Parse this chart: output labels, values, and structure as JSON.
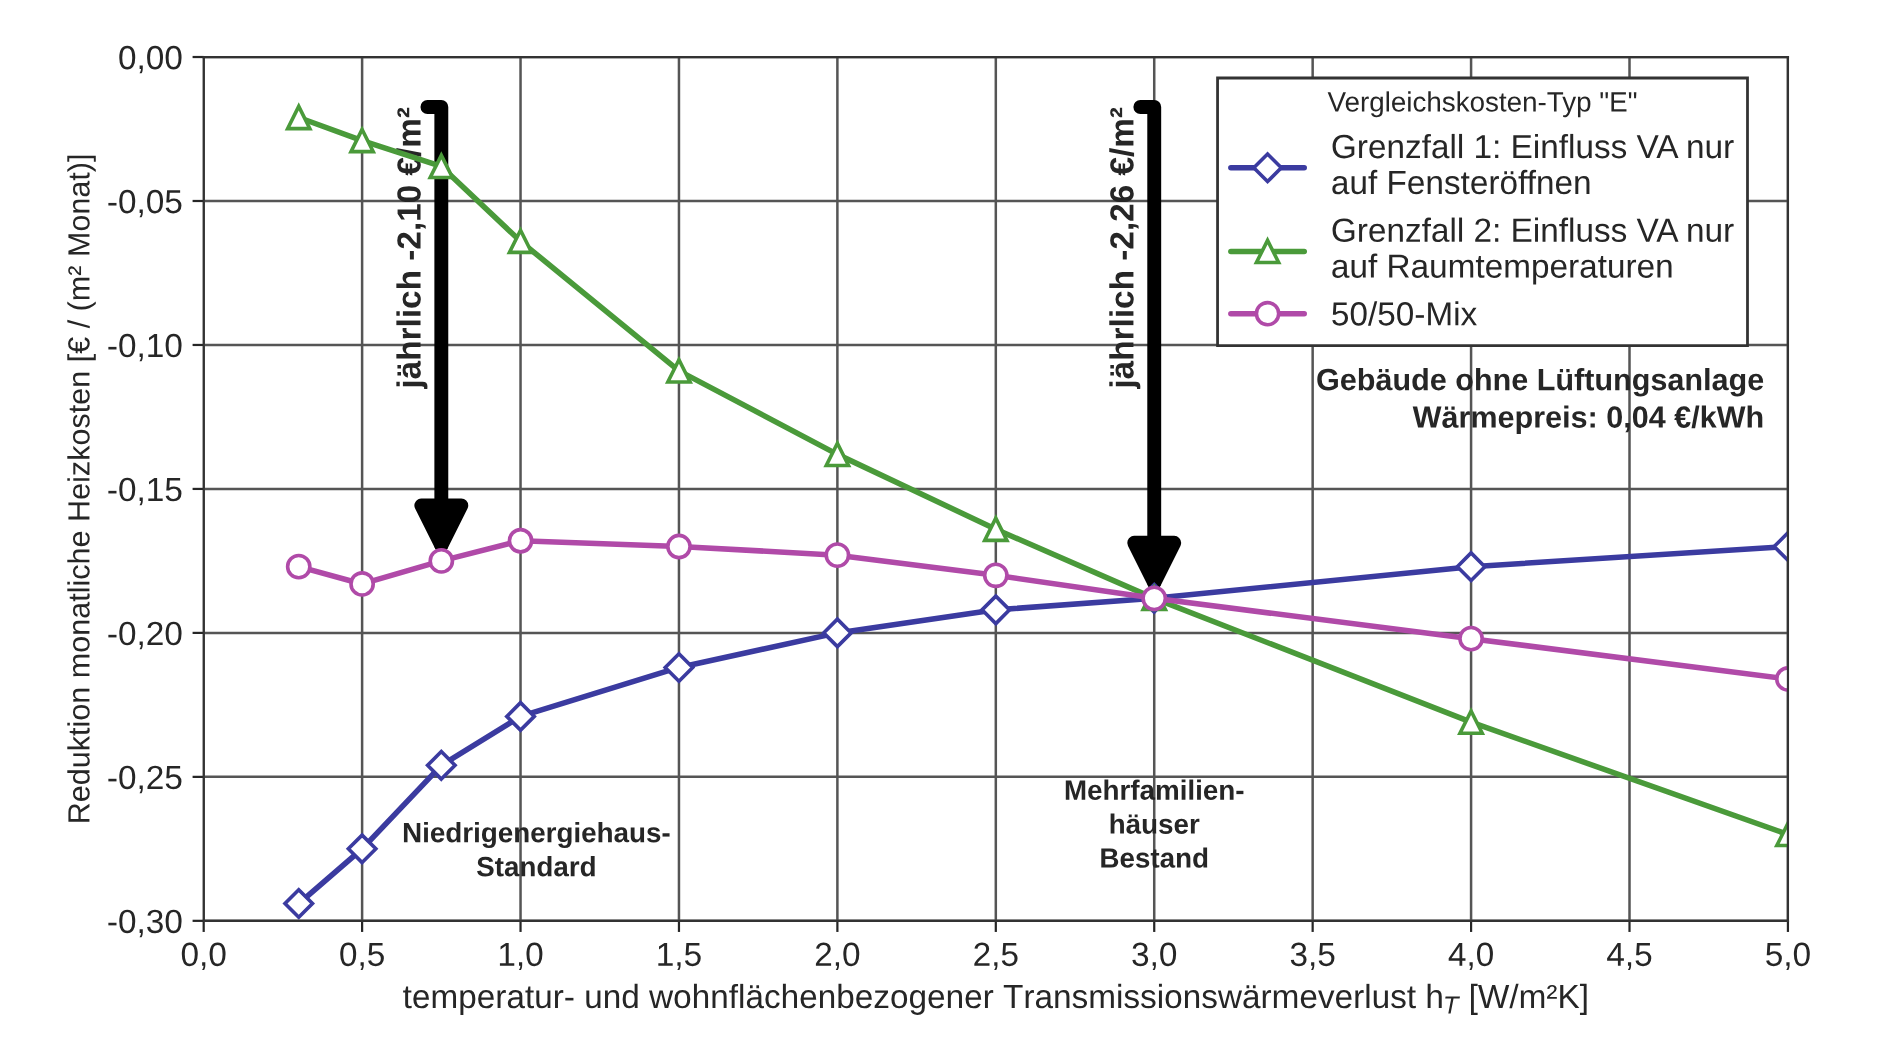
{
  "chart_data": {
    "type": "line",
    "xlabel": "temperatur- und wohnflächenbezogener Transmissionswärmeverlust h$_{T}$ [W/m²K]",
    "ylabel": "Reduktion monatliche Heizkosten [€ / (m² Monat)]",
    "legend_title": "Vergleichskosten-Typ \"E\"",
    "x": [
      0.3,
      0.5,
      0.75,
      1.0,
      1.5,
      2.0,
      2.5,
      3.0,
      4.0,
      5.0
    ],
    "series": [
      {
        "name": "Grenzfall 1: Einfluss VA nur\nauf Fensteröffnen",
        "color": "#3b3ba0",
        "marker": "diamond",
        "values": [
          -0.294,
          -0.275,
          -0.246,
          -0.229,
          -0.212,
          -0.2,
          -0.192,
          -0.188,
          -0.177,
          -0.17
        ]
      },
      {
        "name": "Grenzfall 2: Einfluss VA nur\nauf Raumtemperaturen",
        "color": "#4a9a3a",
        "marker": "triangle",
        "values": [
          -0.021,
          -0.029,
          -0.038,
          -0.064,
          -0.109,
          -0.138,
          -0.164,
          -0.188,
          -0.231,
          -0.27
        ]
      },
      {
        "name": "50/50-Mix",
        "color": "#b04aa8",
        "marker": "circle",
        "values": [
          -0.177,
          -0.183,
          -0.175,
          -0.168,
          -0.17,
          -0.173,
          -0.18,
          -0.188,
          -0.202,
          -0.216
        ]
      }
    ],
    "xlim": [
      0.0,
      5.0
    ],
    "ylim": [
      -0.3,
      0.0
    ],
    "xticks": [
      {
        "value": 0.0,
        "label": "0,0"
      },
      {
        "value": 0.5,
        "label": "0,5"
      },
      {
        "value": 1.0,
        "label": "1,0"
      },
      {
        "value": 1.5,
        "label": "1,5"
      },
      {
        "value": 2.0,
        "label": "2,0"
      },
      {
        "value": 2.5,
        "label": "2,5"
      },
      {
        "value": 3.0,
        "label": "3,0"
      },
      {
        "value": 3.5,
        "label": "3,5"
      },
      {
        "value": 4.0,
        "label": "4,0"
      },
      {
        "value": 4.5,
        "label": "4,5"
      },
      {
        "value": 5.0,
        "label": "5,0"
      }
    ],
    "yticks": [
      {
        "value": 0.0,
        "label": "0,00"
      },
      {
        "value": -0.05,
        "label": "-0,05"
      },
      {
        "value": -0.1,
        "label": "-0,10"
      },
      {
        "value": -0.15,
        "label": "-0,15"
      },
      {
        "value": -0.2,
        "label": "-0,20"
      },
      {
        "value": -0.25,
        "label": "-0,25"
      },
      {
        "value": -0.3,
        "label": "-0,30"
      }
    ],
    "grid": true,
    "legend": "top right",
    "line_style": "solid",
    "annotations": [
      {
        "text": "jährlich -2,10 €/m²",
        "x": 0.75,
        "y": -0.175
      },
      {
        "text": "jährlich -2,26 €/m²",
        "x": 3.0,
        "y": -0.188
      },
      "Niedrigenergiehaus-\nStandard",
      "Mehrfamilien-\nhäuser\nBestand",
      "Gebäude ohne Lüftungsanlage\nWärmepreis: 0,04 €/kWh"
    ]
  }
}
